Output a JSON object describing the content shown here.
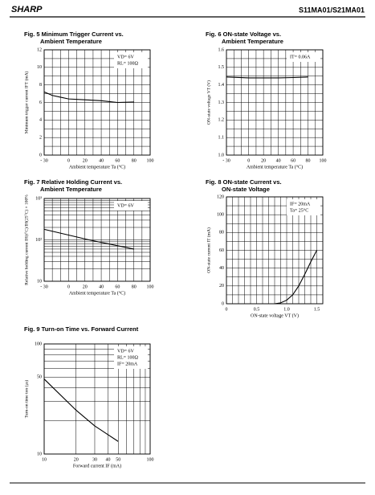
{
  "header": {
    "brand": "SHARP",
    "model": "S11MA01/S21MA01"
  },
  "chart_data": [
    {
      "type": "line",
      "title": [
        "Fig. 5 Minimum Trigger Current vs.",
        "Ambient Temperature"
      ],
      "x_label": "Ambient temperature Ta (°C)",
      "y_label": "Minimum trigger current IFT (mA)",
      "annotations": [
        "VD= 6V",
        "RL= 100Ω"
      ],
      "color": "#000000",
      "x": [
        -30,
        -20,
        -10,
        0,
        20,
        40,
        60,
        80
      ],
      "values": [
        7.2,
        6.8,
        6.6,
        6.4,
        6.3,
        6.2,
        6.0,
        6.05
      ],
      "xlim": [
        -30,
        100
      ],
      "xticks": [
        {
          "value": -30,
          "label": "- 30"
        },
        0,
        20,
        40,
        60,
        80,
        100
      ],
      "ylim": [
        0,
        12
      ],
      "yticks": [
        0,
        2,
        4,
        6,
        8,
        10,
        12
      ],
      "xgrid": [
        -20,
        -10,
        10,
        30,
        50,
        70,
        90
      ],
      "ygrid": [
        1,
        3,
        5,
        7,
        9,
        11
      ]
    },
    {
      "type": "line",
      "title": [
        "Fig. 6 ON-state Voltage vs.",
        "Ambient Temperature"
      ],
      "x_label": "Ambient temperature Ta (°C)",
      "y_label": "ON-state voltage VT (V)",
      "annotations": [
        "IT= 0.06A"
      ],
      "color": "#000000",
      "x": [
        -30,
        0,
        20,
        40,
        60,
        80
      ],
      "values": [
        1.445,
        1.44,
        1.44,
        1.44,
        1.442,
        1.445
      ],
      "xlim": [
        -30,
        100
      ],
      "xticks": [
        {
          "value": -30,
          "label": "- 30"
        },
        0,
        20,
        40,
        60,
        80,
        100
      ],
      "ylim": [
        1.0,
        1.6
      ],
      "yticks": [
        {
          "value": 1.0,
          "label": "1.0"
        },
        1.1,
        1.2,
        1.3,
        1.4,
        1.5,
        1.6
      ],
      "xgrid": [
        -20,
        -10,
        10,
        30,
        50,
        70,
        90
      ],
      "ygrid": [
        1.05,
        1.15,
        1.25,
        1.35,
        1.45,
        1.55
      ]
    },
    {
      "type": "line",
      "title": [
        "Fig. 7 Relative Holding Current vs.",
        "Ambient Temperature"
      ],
      "x_label": "Ambient temperature Ta (°C)",
      "y_label": "Relative holding current IH(t°C)/IH(25°C) × 100%",
      "annotations": [
        "VD= 6V"
      ],
      "color": "#000000",
      "ylog": true,
      "x": [
        -30,
        25,
        80
      ],
      "values": [
        180,
        100,
        60
      ],
      "xlim": [
        -30,
        100
      ],
      "xticks": [
        {
          "value": -30,
          "label": "- 30"
        },
        0,
        20,
        40,
        60,
        80,
        100
      ],
      "ylim": [
        10,
        1000
      ],
      "yticks": [
        10,
        {
          "value": 100,
          "label": "10²"
        },
        {
          "value": 1000,
          "label": "10³"
        }
      ],
      "xgrid": [
        -20,
        -10,
        10,
        30,
        50,
        70,
        90
      ],
      "ygrid": [
        20,
        30,
        40,
        50,
        60,
        70,
        80,
        90,
        200,
        300,
        400,
        500,
        600,
        700,
        800,
        900
      ]
    },
    {
      "type": "line",
      "title": [
        "Fig. 8 ON-state Current vs.",
        "ON-state Voltage"
      ],
      "x_label": "ON-state voltage VT (V)",
      "y_label": "ON-state current IT (mA)",
      "annotations": [
        "IF= 20mA",
        "Ta= 25°C"
      ],
      "color": "#000000",
      "x": [
        0.8,
        0.9,
        1.0,
        1.1,
        1.2,
        1.3,
        1.4,
        1.5
      ],
      "values": [
        0,
        1,
        4,
        10,
        20,
        33,
        47,
        60
      ],
      "xlim": [
        0,
        1.6
      ],
      "xticks": [
        0,
        0.5,
        {
          "value": 1.0,
          "label": "1.0"
        },
        1.5
      ],
      "ylim": [
        0,
        120
      ],
      "yticks": [
        0,
        20,
        40,
        60,
        80,
        100,
        120
      ],
      "xgrid": [
        0.1,
        0.2,
        0.3,
        0.4,
        0.6,
        0.7,
        0.8,
        0.9,
        1.1,
        1.2,
        1.3,
        1.4
      ],
      "ygrid": [
        10,
        30,
        50,
        70,
        90,
        110
      ]
    },
    {
      "type": "line",
      "title": [
        "Fig. 9 Turn-on Time vs. Forward Current"
      ],
      "x_label": "Forward current IF (mA)",
      "y_label": "Turn-on time ton (μs)",
      "annotations": [
        "VD= 6V",
        "RL= 100Ω",
        "IF= 20mA"
      ],
      "color": "#000000",
      "xlog": true,
      "ylog": true,
      "x": [
        10,
        20,
        30,
        50
      ],
      "values": [
        48,
        25,
        18,
        13
      ],
      "xlim": [
        10,
        100
      ],
      "xticks": [
        10,
        20,
        30,
        40,
        50,
        100
      ],
      "ylim": [
        10,
        100
      ],
      "yticks": [
        10,
        50,
        100
      ],
      "xgrid": [
        60,
        70,
        80,
        90
      ],
      "ygrid": [
        20,
        30,
        40,
        60,
        70,
        80,
        90
      ]
    }
  ]
}
